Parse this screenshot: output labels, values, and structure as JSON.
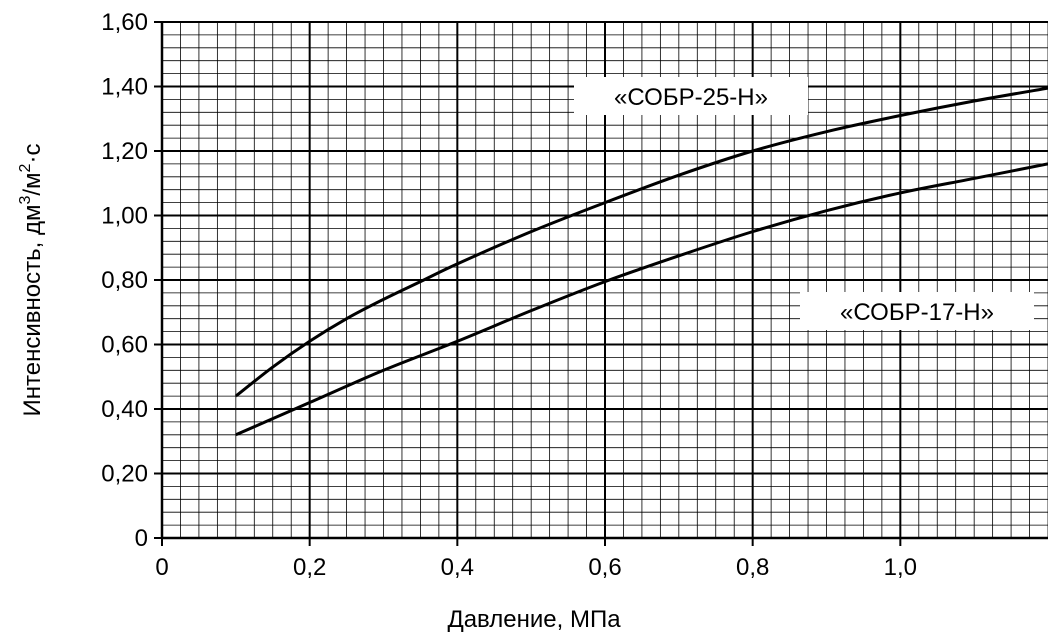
{
  "chart_data": {
    "type": "line",
    "xlabel": "Давление, МПа",
    "ylabel": "Интенсивность, дм3/м2·с",
    "ylabel_parts": {
      "pre": "Интенсивность, дм",
      "sup1": "3",
      "mid": "/м",
      "sup2": "2",
      "post": "·с"
    },
    "xlim": [
      0,
      1.2
    ],
    "ylim": [
      0,
      1.6
    ],
    "grid": true,
    "x_ticks": [
      0,
      0.2,
      0.4,
      0.6,
      0.8,
      1.0
    ],
    "x_tick_labels": [
      "0",
      "0,2",
      "0,4",
      "0,6",
      "0,8",
      "1,0"
    ],
    "y_ticks": [
      0,
      0.2,
      0.4,
      0.6,
      0.8,
      1.0,
      1.2,
      1.4,
      1.6
    ],
    "y_tick_labels": [
      "0",
      "0,20",
      "0,40",
      "0,60",
      "0,80",
      "1,00",
      "1,20",
      "1,40",
      "1,60"
    ],
    "series": [
      {
        "name": "«СОБР-25-Н»",
        "x": [
          0.1,
          0.15,
          0.2,
          0.25,
          0.3,
          0.35,
          0.4,
          0.5,
          0.6,
          0.7,
          0.8,
          0.9,
          1.0,
          1.1,
          1.2
        ],
        "y": [
          0.44,
          0.53,
          0.61,
          0.68,
          0.74,
          0.795,
          0.85,
          0.95,
          1.04,
          1.125,
          1.2,
          1.26,
          1.31,
          1.355,
          1.395
        ]
      },
      {
        "name": "«СОБР-17-Н»",
        "x": [
          0.1,
          0.15,
          0.2,
          0.3,
          0.4,
          0.5,
          0.6,
          0.7,
          0.8,
          0.9,
          1.0,
          1.1,
          1.2
        ],
        "y": [
          0.32,
          0.37,
          0.42,
          0.52,
          0.61,
          0.705,
          0.795,
          0.875,
          0.95,
          1.015,
          1.07,
          1.115,
          1.16
        ]
      }
    ]
  }
}
